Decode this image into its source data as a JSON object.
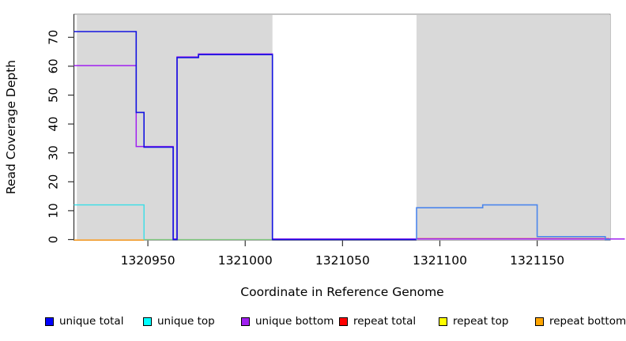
{
  "chart_data": {
    "type": "line",
    "subtype": "step-coverage-plot",
    "title": "",
    "xlabel": "Coordinate in Reference Genome",
    "ylabel": "Read Coverage Depth",
    "xlim": [
      1320912,
      1321187.5
    ],
    "ylim": [
      0,
      78
    ],
    "x_ticks": [
      1320950,
      1321000,
      1321050,
      1321100,
      1321150
    ],
    "y_ticks": [
      0,
      10,
      20,
      30,
      40,
      50,
      60,
      70
    ],
    "grid": false,
    "legend_position": "bottom-horizontal",
    "plot_background": "#ffffff",
    "shaded_regions": [
      {
        "x1": 1320913.5,
        "x2": 1321014,
        "color": "#d9d9d9"
      },
      {
        "x1": 1321088,
        "x2": 1321187.5,
        "color": "#d9d9d9"
      }
    ],
    "series": [
      {
        "name": "baseline-green-segment",
        "color": "#7dc97d",
        "width": 1.3,
        "dy": 0,
        "path": [
          [
            1320948,
            0
          ],
          [
            1321014,
            0
          ]
        ]
      },
      {
        "name": "repeat-bottom",
        "color": "#ff9e1e",
        "width": 1.5,
        "dy": 0.6,
        "path": [
          [
            1320912,
            0
          ],
          [
            1320948,
            0
          ]
        ]
      },
      {
        "name": "unique-top",
        "color": "#38dfe8",
        "width": 1.4,
        "dy": 0,
        "path": [
          [
            1320912,
            12
          ],
          [
            1320948,
            12
          ],
          [
            1320948,
            0
          ]
        ]
      },
      {
        "name": "repeat-total",
        "color": "#e04552",
        "width": 1.2,
        "dy": 0,
        "path": [
          [
            1321088,
            0.35
          ],
          [
            1321187,
            0.35
          ]
        ]
      },
      {
        "name": "unique-bottom",
        "color": "#a020f0",
        "width": 1.5,
        "dy": -0.8,
        "path": [
          [
            1320912,
            60
          ],
          [
            1320944,
            60
          ],
          [
            1320944,
            32
          ],
          [
            1320963,
            32
          ],
          [
            1320963,
            0
          ],
          [
            1320965,
            0
          ],
          [
            1320965,
            63
          ],
          [
            1320976,
            63
          ],
          [
            1320976,
            64
          ],
          [
            1321014,
            64
          ],
          [
            1321014,
            0
          ],
          [
            1321195,
            0
          ]
        ]
      },
      {
        "name": "unique-total-left",
        "color": "#1414e0",
        "width": 1.6,
        "dy": 0,
        "path": [
          [
            1320912,
            72
          ],
          [
            1320944,
            72
          ],
          [
            1320944,
            44
          ],
          [
            1320948,
            44
          ],
          [
            1320948,
            32
          ],
          [
            1320963,
            32
          ],
          [
            1320963,
            0
          ],
          [
            1320965,
            0
          ],
          [
            1320965,
            63
          ],
          [
            1320976,
            63
          ],
          [
            1320976,
            64
          ],
          [
            1321014,
            64
          ],
          [
            1321014,
            0
          ],
          [
            1321088,
            0
          ]
        ]
      },
      {
        "name": "unique-total-right",
        "color": "#4c86ec",
        "width": 1.6,
        "dy": 0,
        "path": [
          [
            1321088,
            0
          ],
          [
            1321088,
            11
          ],
          [
            1321122,
            11
          ],
          [
            1321122,
            12
          ],
          [
            1321150,
            12
          ],
          [
            1321150,
            1
          ],
          [
            1321185,
            1
          ],
          [
            1321185,
            0
          ],
          [
            1321187.5,
            0
          ]
        ]
      }
    ],
    "legend": [
      {
        "label": "unique total",
        "color": "#0000ff"
      },
      {
        "label": "unique top",
        "color": "#00ffff"
      },
      {
        "label": "unique bottom",
        "color": "#a020f0"
      },
      {
        "label": "repeat total",
        "color": "#ff0000"
      },
      {
        "label": "repeat top",
        "color": "#ffff00"
      },
      {
        "label": "repeat bottom",
        "color": "#ffa500"
      }
    ]
  }
}
